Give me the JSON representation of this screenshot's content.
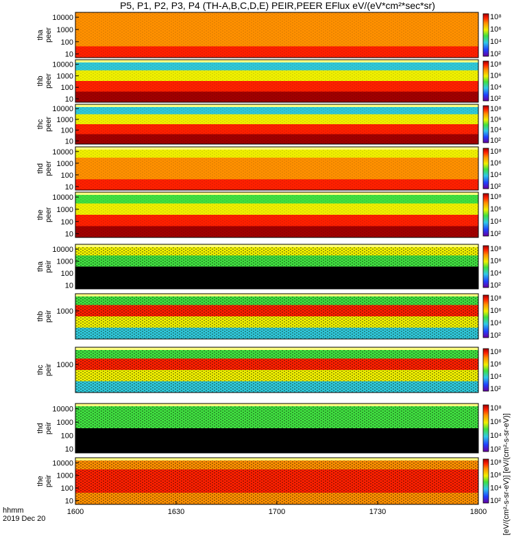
{
  "title": "P5, P1, P2, P3, P4 (TH-A,B,C,D,E) PEIR,PEER EFlux eV/(eV*cm²*sec*sr)",
  "time_axis": {
    "ticks": [
      "1600",
      "1630",
      "1700",
      "1730",
      "1800"
    ],
    "unit_label": "hhmm",
    "date": "2019 Dec 20"
  },
  "colorbar": {
    "label_strip": "[eV/(cm²-s-sr-eV)] [eV/(cm²-s-sr-eV)]",
    "ticks": [
      "10⁸",
      "10⁶",
      "10⁴",
      "10²"
    ]
  },
  "colors": {
    "saturated": "#a00000",
    "red": "#ff2000",
    "orange": "#ff9000",
    "yellow": "#f0f000",
    "green": "#40e040",
    "cyan": "#30c8d8",
    "blue": "#2050e0",
    "black": "#000000"
  },
  "chart_data": {
    "type": "heatmap",
    "x_range": [
      "1600",
      "1800"
    ],
    "panels": [
      {
        "name": "tha peer",
        "y_ticks": [
          "10000",
          "1000",
          "100",
          "10"
        ],
        "y_range": [
          5,
          25000
        ],
        "y_scale": "log",
        "bands": [
          "orange",
          "orange",
          "orange",
          "red"
        ]
      },
      {
        "name": "thb peer",
        "y_ticks": [
          "10000",
          "1000",
          "100",
          "10"
        ],
        "y_range": [
          5,
          25000
        ],
        "y_scale": "log",
        "bands": [
          "cyan",
          "yellow",
          "red",
          "saturated"
        ]
      },
      {
        "name": "thc peer",
        "y_ticks": [
          "10000",
          "1000",
          "100",
          "10"
        ],
        "y_range": [
          5,
          25000
        ],
        "y_scale": "log",
        "bands": [
          "cyan",
          "yellow",
          "red",
          "saturated"
        ]
      },
      {
        "name": "thd peer",
        "y_ticks": [
          "10000",
          "1000",
          "100",
          "10"
        ],
        "y_range": [
          5,
          25000
        ],
        "y_scale": "log",
        "bands": [
          "yellow",
          "orange",
          "orange",
          "red"
        ]
      },
      {
        "name": "the peer",
        "y_ticks": [
          "10000",
          "1000",
          "100",
          "10"
        ],
        "y_range": [
          5,
          25000
        ],
        "y_scale": "log",
        "bands": [
          "green",
          "yellow",
          "red",
          "saturated"
        ]
      },
      {
        "name": "tha peir",
        "y_ticks": [
          "10000",
          "1000",
          "100",
          "10"
        ],
        "y_range": [
          5,
          25000
        ],
        "y_scale": "log",
        "bands": [
          "yellow",
          "green",
          "black",
          "black"
        ]
      },
      {
        "name": "thb peir",
        "y_ticks": [
          "1000"
        ],
        "y_range": [
          5,
          25000
        ],
        "y_scale": "log",
        "bands": [
          "green",
          "red",
          "yellow",
          "cyan"
        ]
      },
      {
        "name": "thc peir",
        "y_ticks": [
          "1000"
        ],
        "y_range": [
          5,
          25000
        ],
        "y_scale": "log",
        "bands": [
          "green",
          "red",
          "yellow",
          "cyan"
        ]
      },
      {
        "name": "thd peir",
        "y_ticks": [
          "10000",
          "1000",
          "100",
          "10"
        ],
        "y_range": [
          5,
          25000
        ],
        "y_scale": "log",
        "bands": [
          "green",
          "green",
          "black",
          "black"
        ]
      },
      {
        "name": "the peir",
        "y_ticks": [
          "10000",
          "1000",
          "100",
          "10"
        ],
        "y_range": [
          5,
          25000
        ],
        "y_scale": "log",
        "bands": [
          "orange",
          "red",
          "red",
          "orange"
        ]
      }
    ]
  }
}
